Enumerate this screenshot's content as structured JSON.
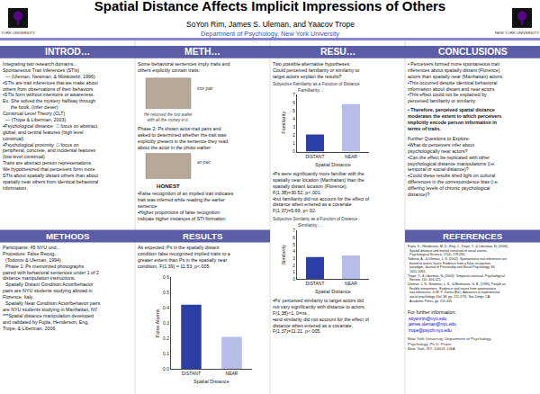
{
  "title": "Spatial Distance Affects Implicit Impressions of Others",
  "subtitle": "SoYon Rim, James S. Uleman, and Yaacov Trope",
  "annotations": [
    "YORK UNIVERSITY",
    "NEW YORK UNIVERSITY",
    "Department of Psychology, New York University",
    "INTROD…",
    "METH…",
    "RESU…",
    "CONCLUSIONS",
    "METHODS",
    "RESULTS",
    "REFERENCES",
    "Integrating two research domains...\nSpontaneous Trait Inferences (STIs)\n  — (Uleman, Newman, & Moskowitz, 1996)\n•STIs are trait inferences that we make about\nothers from observations of their behaviors\n•STIs form without intentions or awareness.\nEx. She solved the mystery halfway through\n      the book. (infer clever)\nConstrual Level Theory (CLT)\n  — (Trope & Liberman, 2003)\n•Psychological distance:  □ focus on abstract,\nglobal, and central features (high level\nconstrual)\n•Psychological proximity  □ focus on\nperipheral, concrete, and incidental features\n(low level construal)\nTraits are abstract person representations.\nWe hypothesized that perceivers form more\nSTIs about spatially distant others than about\nspatially near others from identical behavioral\ninformation.",
    "Some behavioral sentences imply traits and\nothers explicitly contain traits:",
    "inor pair",
    "He returned the lost wallet\nwith all the money in it.",
    "Phase 2: Ps shown actor-trait pairs and\nasked to determined whether the trait was\nexplicitly present in the sentence they read\nabout the actor in the photo earlier",
    "an pair",
    "HONEST",
    "•False recognition of an implied trait indicates\ntrait was inferred while reading the earlier\nsentence\n•Higher proportions of false recognition\nindicate higher instances of STI formation",
    "As expected, Ps in the spatially distant\ncondition false recognized implied traits to a\ngreater extent than Ps in the spatially near\ncondition, F(1,39) = 11.53, p<.005.",
    "Two possible alternative hypotheses:\nCould perceived familiarity or similarity to\ntarget actors explain the results?",
    "•Ps were significantly more familiar with the\nspatially near location (Manhattan) than the\nspatially distant location (Florence),\nF(1,38)=30.52, p<.001.\n•but familiarity did not account for the effect of\ndistance when entered as a covariate\nF(1,37)=5.69, p<.02.",
    "•Ps' perceived similarity to target actors did\nnot vary significantly with distance to actors,\nF(1,38)<1, 0=ns.,\n•and similarity did not account for the effect of\ndistance when entered as a covariate,\nF(1,37)=11.21, p<.005.",
    "• Perceivers formed more spontaneous trait\ninferences about spatially distant (Florence)\nactors than spatially near (Manhattan) actors.\n•This occurred despite identical behavioral\ninformation about distant and near actors.\n•This effect could not be explained by\nperceived familiarity or similarity.",
    "• Therefore, perceived spatial distance\nmoderates the extent to which perceivers\nimplicitly encode person information in\nterms of traits.",
    "Further Questions to Explore:\n•What do perceivers infer about\npsychologically near actors?\n•Can the effect be replicated with other\npsychological distance manipulations (i.e.\ntemporal or social distance)?\n•Could these results shed light on cultural\ndifferences in the correspondence bias (i.e.\ndiffering levels of chronic psychological\ndistance)?",
    "Participants: 45 NYU und...\nProcedure: False Recog...\n  (Todorov & Uleman, 1994)\n  Phase 1: Ps memorized photographs\npaired with behavioral sentences under 1 of 2\ndistance manipulation instructions.\n  Spatially Distant Condition:Actor/behavior\npairs are NYU students studying abroad in\nFlorence, Italy.\n  Spatially Near Condition:Actor/behavior pairs\nare NYU students studying in Manhattan, NY.\n***Spatial distance manipulation developed\nand validated by Fujita, Henderson, Eng,\nTrope, & Liberman, 2006",
    "Fujita, K., Henderson, M. D., Eng, J., Trope, Y., & Liberman, N. (2006).\n  Spatial distance and mental construal of social events.\n  Psychological Science, 17(4), 278-282.\nTodorov, A., & Uleman, J. S. (2002). Spontaneous trait inferences are\n  bound to actors' faces. Evidence from a false recognition\n  paradigm. Journal of Personality and Social Psychology, 83,\n  1051-1065.\nTrope, Y., & Liberman, N. (2003). Temporal construal. Psychological\n  Review, 110, 403-421.\nUleman, J. S., Newman, L. S., & Moskowitz, G. B. (1996). People as\n  flexible interpreters:  Evidence and issues from spontaneous\n  trait inferences. In M. P. Zanna (Ed.), Advances in experimental\n  social psychology (Vol. 38, pp. 211-279). San Diego, CA:\n  Academic Press. pp. 211-416.",
    "For further information:",
    "soyonrim@nyu.edu\njames.uleman@nyu.edu\ntrope@psych.nyu.edu",
    "New York University, Department of Psychology\nPsychology, Ph.D. Prater\nNew York, NY, 10003, USA"
  ],
  "chart_data": [
    {
      "type": "bar",
      "title": "Subjective Familiarity as a Function of Distance",
      "subtitle": "Familiarity...",
      "categories": [
        "DISTANT",
        "NEAR"
      ],
      "values": [
        2.1,
        5.8
      ],
      "colors": [
        "#2b3ea6",
        "#b8bde8"
      ],
      "xlabel": "Spatial Distance",
      "ylabel": "Familiarity",
      "ylim": [
        0,
        7
      ],
      "yticks": [
        0,
        1,
        2,
        3,
        4,
        5,
        6,
        7
      ],
      "grid": false
    },
    {
      "type": "bar",
      "title": "Subjective Similarity as a Function of Distance",
      "subtitle": "Similarity...",
      "categories": [
        "DISTANT",
        "NEAR"
      ],
      "values": [
        3.2,
        3.4
      ],
      "colors": [
        "#2b3ea6",
        "#b8bde8"
      ],
      "xlabel": "Spatial Distance",
      "ylabel": "Similarity",
      "ylim": [
        0,
        7
      ],
      "yticks": [
        0,
        1,
        2,
        3,
        4,
        5,
        6,
        7
      ],
      "grid": false
    },
    {
      "type": "bar",
      "categories": [
        "DISTANT",
        "NEAR"
      ],
      "values": [
        0.42,
        0.21
      ],
      "colors": [
        "#2b3ea6",
        "#b8bde8"
      ],
      "xlabel": "Spatial Distance",
      "ylabel": "False Alarms",
      "ylim": [
        0,
        0.6
      ],
      "yticks": [
        {
          "value": 0,
          "label": "0.0"
        },
        0.1,
        0.2,
        0.3,
        0.4,
        0.5,
        0.6
      ],
      "grid": false
    }
  ]
}
